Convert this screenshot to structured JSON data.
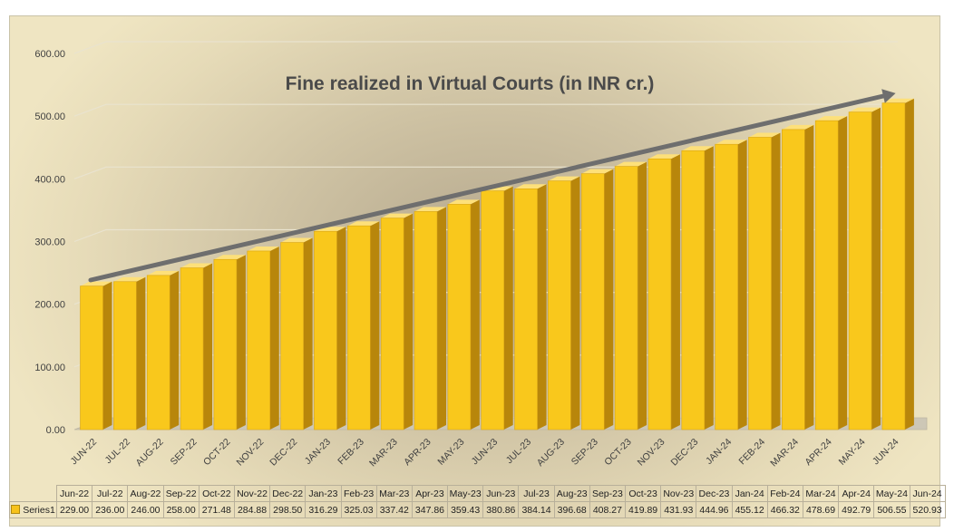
{
  "chart_data": {
    "type": "bar",
    "title": "Fine realized in Virtual Courts (in INR cr.)",
    "xlabel": "",
    "ylabel": "",
    "ylim": [
      0,
      600
    ],
    "yticks": [
      "0.00",
      "100.00",
      "200.00",
      "300.00",
      "400.00",
      "500.00",
      "600.00"
    ],
    "categories": [
      "JUN-22",
      "JUL-22",
      "AUG-22",
      "SEP-22",
      "OCT-22",
      "NOV-22",
      "DEC-22",
      "JAN-23",
      "FEB-23",
      "MAR-23",
      "APR-23",
      "MAY-23",
      "JUN-23",
      "JUL-23",
      "AUG-23",
      "SEP-23",
      "OCT-23",
      "NOV-23",
      "DEC-23",
      "JAN-24",
      "FEB-24",
      "MAR-24",
      "APR-24",
      "MAY-24",
      "JUN-24"
    ],
    "table_headers": [
      "Jun-22",
      "Jul-22",
      "Aug-22",
      "Sep-22",
      "Oct-22",
      "Nov-22",
      "Dec-22",
      "Jan-23",
      "Feb-23",
      "Mar-23",
      "Apr-23",
      "May-23",
      "Jun-23",
      "Jul-23",
      "Aug-23",
      "Sep-23",
      "Oct-23",
      "Nov-23",
      "Dec-23",
      "Jan-24",
      "Feb-24",
      "Mar-24",
      "Apr-24",
      "May-24",
      "Jun-24"
    ],
    "series": [
      {
        "name": "Series1",
        "values": [
          229.0,
          236.0,
          246.0,
          258.0,
          271.48,
          284.88,
          298.5,
          316.29,
          325.03,
          337.42,
          347.86,
          359.43,
          380.86,
          384.14,
          396.68,
          408.27,
          419.89,
          431.93,
          444.96,
          455.12,
          466.32,
          478.69,
          492.79,
          506.55,
          520.93
        ],
        "labels": [
          "229.00",
          "236.00",
          "246.00",
          "258.00",
          "271.48",
          "284.88",
          "298.50",
          "316.29",
          "325.03",
          "337.42",
          "347.86",
          "359.43",
          "380.86",
          "384.14",
          "396.68",
          "408.27",
          "419.89",
          "431.93",
          "444.96",
          "455.12",
          "466.32",
          "478.69",
          "492.79",
          "506.55",
          "520.93"
        ]
      }
    ],
    "grid": true,
    "legend": "data-table",
    "trend_arrow": true
  },
  "colors": {
    "bar_front": "#f9c81c",
    "bar_side": "#b8860b",
    "bar_top": "#fde07a",
    "arrow": "#6e6e6e"
  }
}
